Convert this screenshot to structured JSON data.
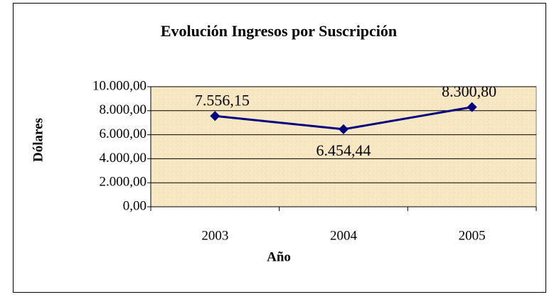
{
  "chart_data": {
    "type": "line",
    "title": "Evolución Ingresos por Suscripción",
    "x_label": "Año",
    "y_label": "Dólares",
    "categories": [
      "2003",
      "2004",
      "2005"
    ],
    "series": [
      {
        "name": "Ingresos",
        "color": "#000080",
        "values": [
          7556.15,
          6454.44,
          8300.8
        ],
        "value_labels": [
          "7.556,15",
          "6.454,44",
          "8.300,80"
        ]
      }
    ],
    "ylim": [
      0,
      10000
    ],
    "yticks": [
      {
        "value": 0,
        "label": "0,00"
      },
      {
        "value": 2000,
        "label": "2.000,00"
      },
      {
        "value": 4000,
        "label": "4.000,00"
      },
      {
        "value": 6000,
        "label": "6.000,00"
      },
      {
        "value": 8000,
        "label": "8.000,00"
      },
      {
        "value": 10000,
        "label": "10.000,00"
      }
    ],
    "grid": true
  }
}
